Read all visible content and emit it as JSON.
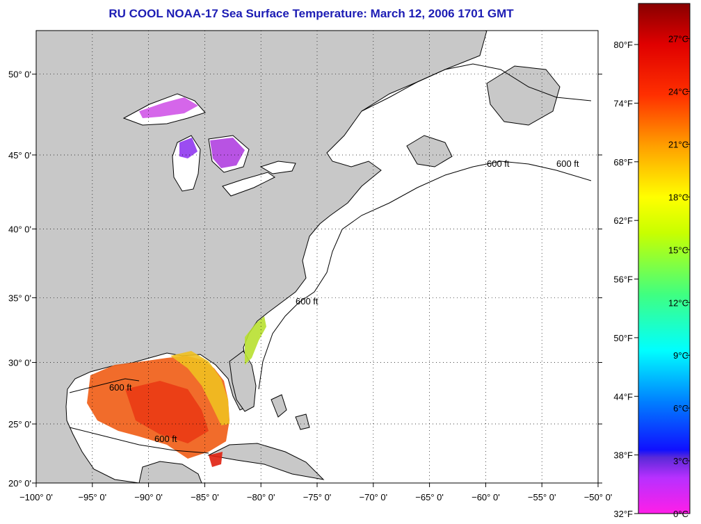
{
  "title": "RU COOL  NOAA-17  Sea Surface Temperature:  March 12, 2006 1701 GMT",
  "map": {
    "lon_range": [
      -100,
      -50
    ],
    "lat_range": [
      20,
      52.5
    ],
    "lon_ticks": [
      "−100° 0'",
      "−95° 0'",
      "−90° 0'",
      "−85° 0'",
      "−80° 0'",
      "−75° 0'",
      "−70° 0'",
      "−65° 0'",
      "−60° 0'",
      "−55° 0'",
      "−50° 0'"
    ],
    "lat_ticks": [
      "20° 0'",
      "25° 0'",
      "30° 0'",
      "35° 0'",
      "40° 0'",
      "45° 0'",
      "50° 0'"
    ],
    "contour_label": "600 ft",
    "colors": {
      "land": "#c8c8c8",
      "ocean": "#ffffff",
      "grid": "#000000"
    }
  },
  "colorbar": {
    "fahrenheit_labels": [
      "80°F",
      "74°F",
      "68°F",
      "62°F",
      "56°F",
      "50°F",
      "44°F",
      "38°F",
      "32°F"
    ],
    "celsius_labels": [
      "27°C",
      "24°C",
      "21°C",
      "18°C",
      "15°C",
      "12°C",
      "9°C",
      "6°C",
      "3°C",
      "0°C"
    ],
    "range_c": [
      0,
      29
    ]
  }
}
